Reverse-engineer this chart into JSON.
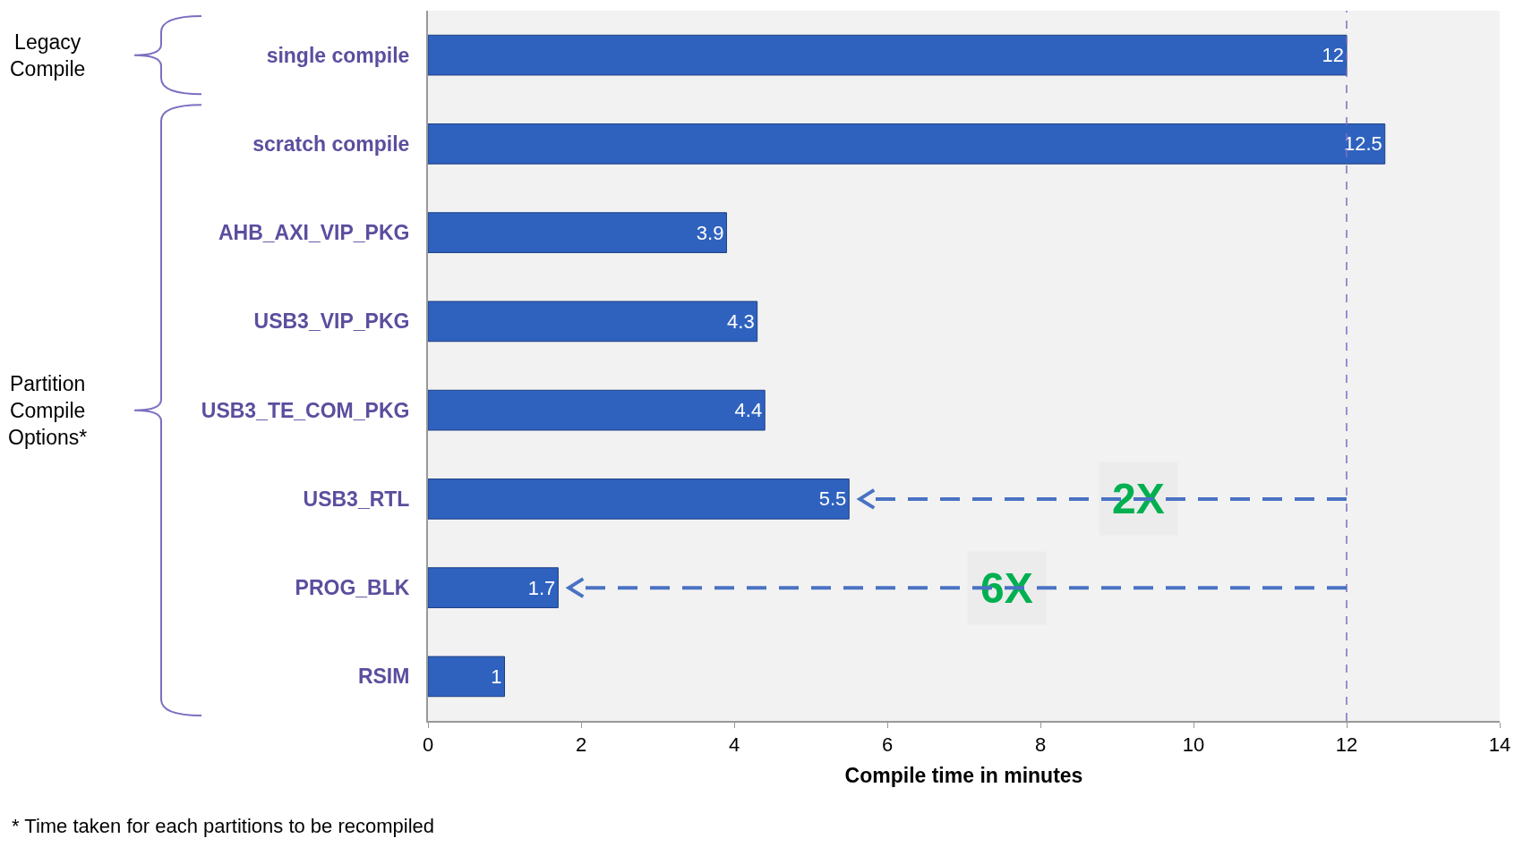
{
  "chart_data": {
    "type": "bar",
    "orientation": "horizontal",
    "xlabel": "Compile time in minutes",
    "categories": [
      "single compile",
      "scratch compile",
      "AHB_AXI_VIP_PKG",
      "USB3_VIP_PKG",
      "USB3_TE_COM_PKG",
      "USB3_RTL",
      "PROG_BLK",
      "RSIM"
    ],
    "values": [
      12,
      12.5,
      3.9,
      4.3,
      4.4,
      5.5,
      1.7,
      1
    ],
    "color": "#2f62bf",
    "data_labels": true,
    "xlim": [
      0,
      14
    ],
    "xticks": [
      0,
      2,
      4,
      6,
      8,
      10,
      12,
      14
    ],
    "grid": false,
    "ref_lines": [
      {
        "axis": "x",
        "value": 12,
        "color": "#7b6fc0",
        "line_style": "dashed"
      }
    ],
    "annotations": [
      "Legacy Compile",
      "Partition Compile Options*",
      "* Time taken for each partitions to be recompiled",
      "2X",
      "6X"
    ]
  }
}
